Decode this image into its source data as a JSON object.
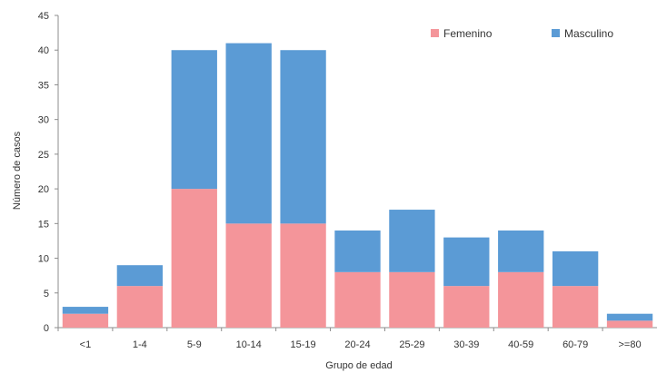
{
  "chart_data": {
    "type": "bar",
    "stacked": true,
    "categories": [
      "<1",
      "1-4",
      "5-9",
      "10-14",
      "15-19",
      "20-24",
      "25-29",
      "30-39",
      "40-59",
      "60-79",
      ">=80"
    ],
    "series": [
      {
        "name": "Femenino",
        "color": "#f4959a",
        "values": [
          2,
          6,
          20,
          15,
          15,
          8,
          8,
          6,
          8,
          6,
          1
        ]
      },
      {
        "name": "Masculino",
        "color": "#5b9bd5",
        "values": [
          1,
          3,
          20,
          26,
          25,
          6,
          9,
          7,
          6,
          5,
          1
        ]
      }
    ],
    "title": "",
    "xlabel": "Grupo de edad",
    "ylabel": "Número de casos",
    "ylim": [
      0,
      45
    ],
    "yticks": [
      0,
      5,
      10,
      15,
      20,
      25,
      30,
      35,
      40,
      45
    ],
    "grid": false,
    "legend_position": "top-right"
  }
}
